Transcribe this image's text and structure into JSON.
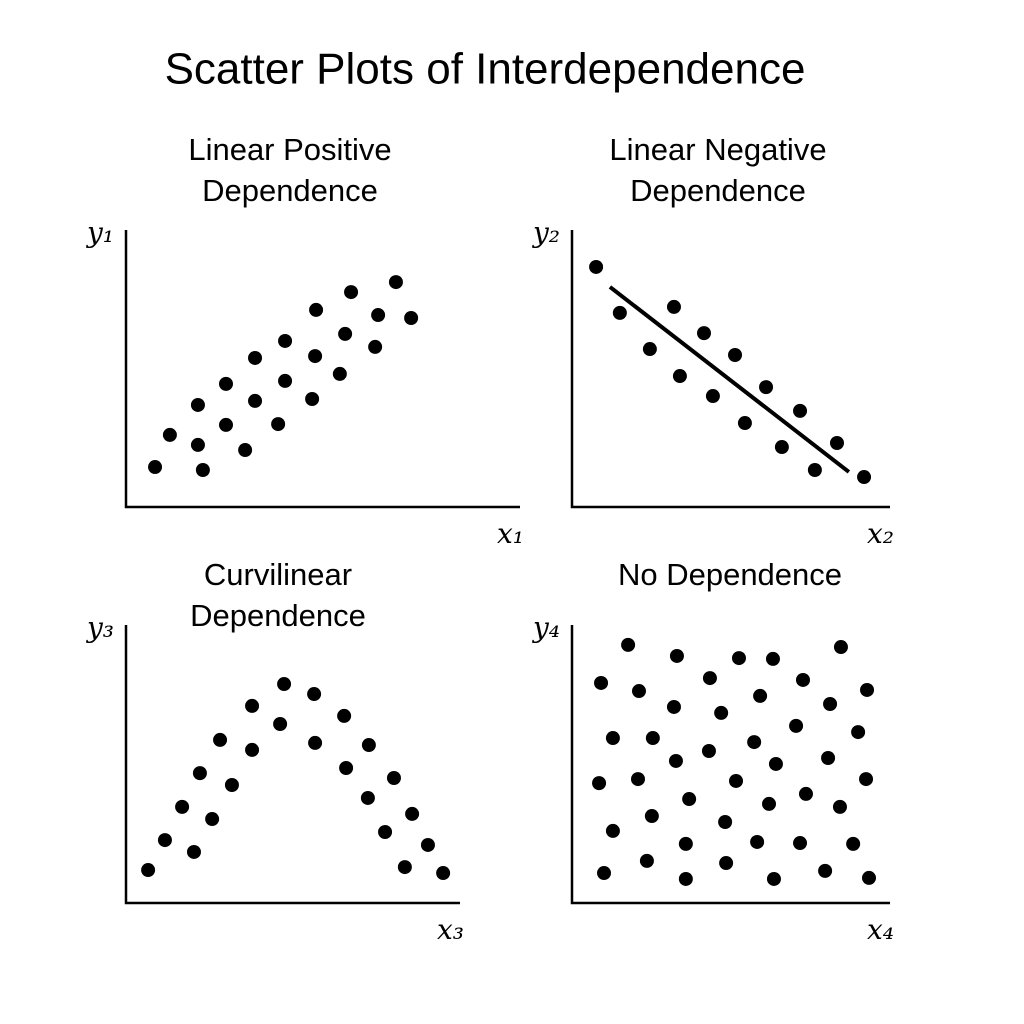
{
  "title": "Scatter Plots of Interdependence",
  "chart_data": [
    {
      "type": "scatter",
      "title": [
        "Linear Positive",
        "Dependence"
      ],
      "x_label": "x₁",
      "y_label": "y₁",
      "color": "#000000",
      "xlim": [
        0,
        100
      ],
      "ylim": [
        0,
        100
      ],
      "x": [
        8.8,
        13.3,
        21.8,
        21.8,
        23.3,
        30.3,
        30.3,
        36.1,
        39.1,
        39.1,
        46.1,
        48.2,
        48.2,
        56.4,
        57.3,
        57.6,
        64.8,
        66.4,
        68.2,
        75.5,
        76.4,
        81.8,
        86.4
      ],
      "values": [
        14.8,
        26.7,
        37.8,
        23.0,
        13.7,
        45.6,
        30.4,
        21.1,
        55.2,
        39.3,
        30.7,
        61.5,
        46.7,
        40.0,
        55.9,
        73.0,
        49.3,
        64.1,
        79.6,
        59.3,
        71.1,
        83.3,
        70.0
      ]
    },
    {
      "type": "scatter",
      "title": [
        "Linear Negative",
        "Dependence"
      ],
      "x_label": "x₂",
      "y_label": "y₂",
      "color": "#000000",
      "xlim": [
        0,
        100
      ],
      "ylim": [
        0,
        100
      ],
      "x": [
        7.3,
        14.5,
        23.6,
        30.9,
        32.7,
        40.0,
        42.7,
        49.4,
        52.4,
        58.8,
        63.6,
        69.1,
        73.6,
        80.3,
        88.5
      ],
      "values": [
        88.9,
        71.9,
        58.5,
        74.1,
        48.5,
        64.4,
        41.1,
        56.3,
        31.1,
        44.4,
        22.2,
        35.6,
        13.7,
        23.7,
        11.1
      ],
      "fit_line": {
        "x": [
          11.5,
          83.9
        ],
        "values": [
          81.5,
          13.0
        ]
      }
    },
    {
      "type": "scatter",
      "title": [
        "Curvilinear",
        "Dependence"
      ],
      "x_label": "x₃",
      "y_label": "y₃",
      "color": "#000000",
      "xlim": [
        0,
        100
      ],
      "ylim": [
        0,
        100
      ],
      "x": [
        6.7,
        11.8,
        17.0,
        20.6,
        22.4,
        26.1,
        28.5,
        32.1,
        38.2,
        38.2,
        46.7,
        47.9,
        57.0,
        57.3,
        66.1,
        66.7,
        73.6,
        73.3,
        78.5,
        81.2,
        84.5,
        86.7,
        91.5,
        96.1
      ],
      "values": [
        12.2,
        23.3,
        35.6,
        18.9,
        48.1,
        31.1,
        60.4,
        43.7,
        73.0,
        56.7,
        66.3,
        81.1,
        77.4,
        59.3,
        69.3,
        50.0,
        58.5,
        38.9,
        26.3,
        46.3,
        13.3,
        33.0,
        21.5,
        11.1
      ]
    },
    {
      "type": "scatter",
      "title": [
        "No Dependence"
      ],
      "x_label": "x₄",
      "y_label": "y₄",
      "color": "#000000",
      "xlim": [
        0,
        100
      ],
      "ylim": [
        0,
        100
      ],
      "x": [
        17.0,
        31.8,
        50.6,
        60.9,
        81.5,
        8.8,
        20.3,
        41.8,
        57.0,
        70.0,
        89.4,
        30.9,
        45.2,
        78.2,
        12.4,
        24.5,
        41.5,
        55.2,
        67.9,
        86.7,
        31.5,
        61.8,
        77.6,
        8.2,
        20.0,
        49.7,
        35.5,
        70.9,
        89.1,
        59.7,
        81.2,
        24.2,
        46.4,
        12.4,
        34.5,
        56.1,
        69.1,
        85.2,
        22.7,
        46.7,
        9.7,
        34.5,
        61.2,
        76.7,
        90.0
      ],
      "values": [
        95.6,
        91.5,
        90.7,
        90.4,
        94.8,
        81.5,
        78.5,
        83.3,
        76.7,
        82.6,
        78.9,
        72.6,
        70.4,
        73.7,
        61.1,
        61.1,
        56.3,
        59.6,
        65.6,
        63.3,
        52.6,
        51.5,
        53.7,
        44.4,
        45.9,
        45.2,
        38.5,
        40.4,
        45.9,
        36.7,
        35.6,
        32.2,
        30.0,
        26.7,
        21.9,
        22.6,
        22.2,
        21.9,
        15.6,
        14.8,
        11.1,
        8.9,
        8.9,
        11.9,
        9.3
      ]
    }
  ]
}
